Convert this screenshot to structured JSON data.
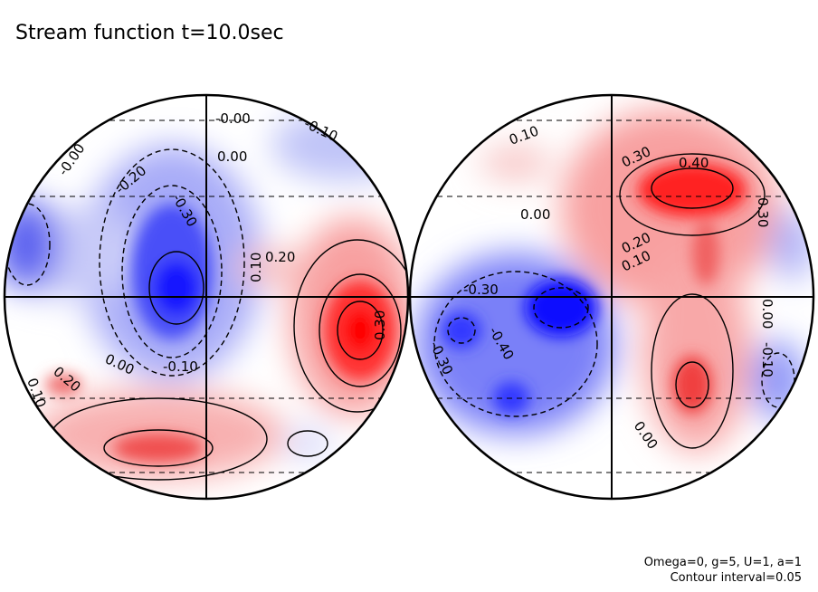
{
  "chart_data": {
    "type": "contour",
    "title": "Stream function t=10.0sec",
    "projection": "orthographic hemispheres (two discs)",
    "contour_interval": 0.05,
    "colormap": {
      "negative": "#0000ff",
      "zero": "#ffffff",
      "positive": "#ff0000"
    },
    "notes": [
      "Omega=0, g=5, U=1, a=1",
      "Contour interval=0.05"
    ],
    "left_labels": [
      "-0.00",
      "-0.10",
      "0.00",
      "-0.20",
      "-0.30",
      "0.20",
      "0.10",
      "0.30",
      "0.00",
      "-0.10",
      "0.20",
      "0.10",
      "-0.00"
    ],
    "right_labels": [
      "0.10",
      "0.30",
      "0.40",
      "0.00",
      "0.20",
      "0.10",
      "0.30",
      "-0.30",
      "-0.40",
      "-0.30",
      "0.00",
      "0.00",
      "-0.10"
    ],
    "extrema": {
      "left_max": 0.5,
      "left_min": -0.35,
      "right_max": 0.45,
      "right_min": -0.45
    }
  }
}
